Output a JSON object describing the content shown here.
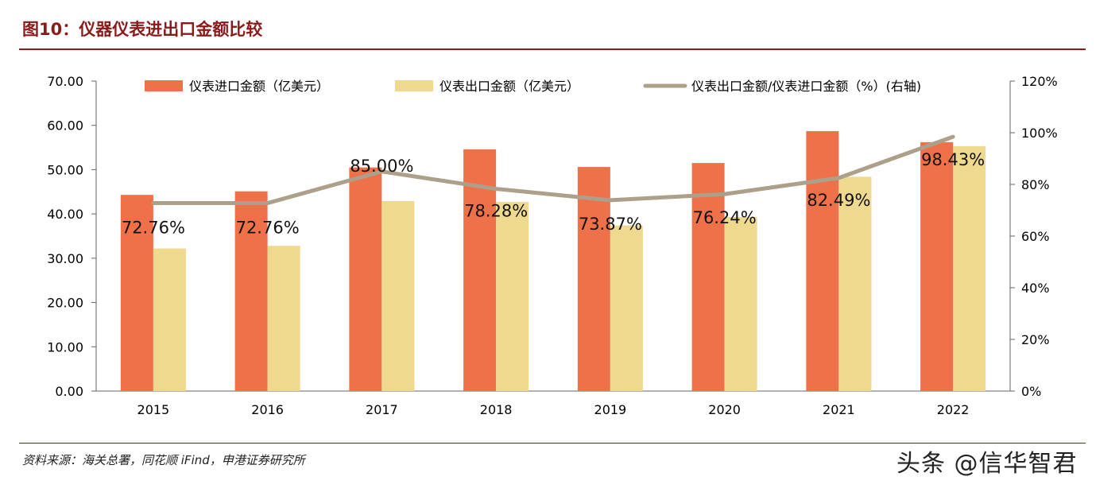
{
  "header": {
    "title": "图10：仪器仪表进出口金额比较"
  },
  "chart_data": {
    "type": "bar",
    "categories": [
      "2015",
      "2016",
      "2017",
      "2018",
      "2019",
      "2020",
      "2021",
      "2022"
    ],
    "series": [
      {
        "name": "仪表进口金额（亿美元）",
        "type": "bar",
        "axis": "left",
        "color": "#EE714A",
        "values": [
          44.3,
          45.1,
          50.5,
          54.6,
          50.6,
          51.5,
          58.7,
          56.2
        ]
      },
      {
        "name": "仪表出口金额（亿美元）",
        "type": "bar",
        "axis": "left",
        "color": "#EED98F",
        "values": [
          32.2,
          32.8,
          42.9,
          42.7,
          37.4,
          39.3,
          48.4,
          55.3
        ]
      },
      {
        "name": "仪表出口金额/仪表进口金额（%）(右轴)",
        "type": "line",
        "axis": "right",
        "color": "#ADA08A",
        "values": [
          72.76,
          72.76,
          85.0,
          78.28,
          73.87,
          76.24,
          82.49,
          98.43
        ],
        "labels": [
          "72.76%",
          "72.76%",
          "85.00%",
          "78.28%",
          "73.87%",
          "76.24%",
          "82.49%",
          "98.43%"
        ]
      }
    ],
    "y_left": {
      "range": [
        0,
        70
      ],
      "ticks": [
        "0.00",
        "10.00",
        "20.00",
        "30.00",
        "40.00",
        "50.00",
        "60.00",
        "70.00"
      ]
    },
    "y_right": {
      "range": [
        0,
        120
      ],
      "ticks": [
        "0%",
        "20%",
        "40%",
        "60%",
        "80%",
        "100%",
        "120%"
      ]
    },
    "legend_position": "top",
    "grid": false
  },
  "footer": {
    "source": "资料来源：海关总署，同花顺 iFind，申港证券研究所",
    "watermark": "头条 @信华智君"
  }
}
